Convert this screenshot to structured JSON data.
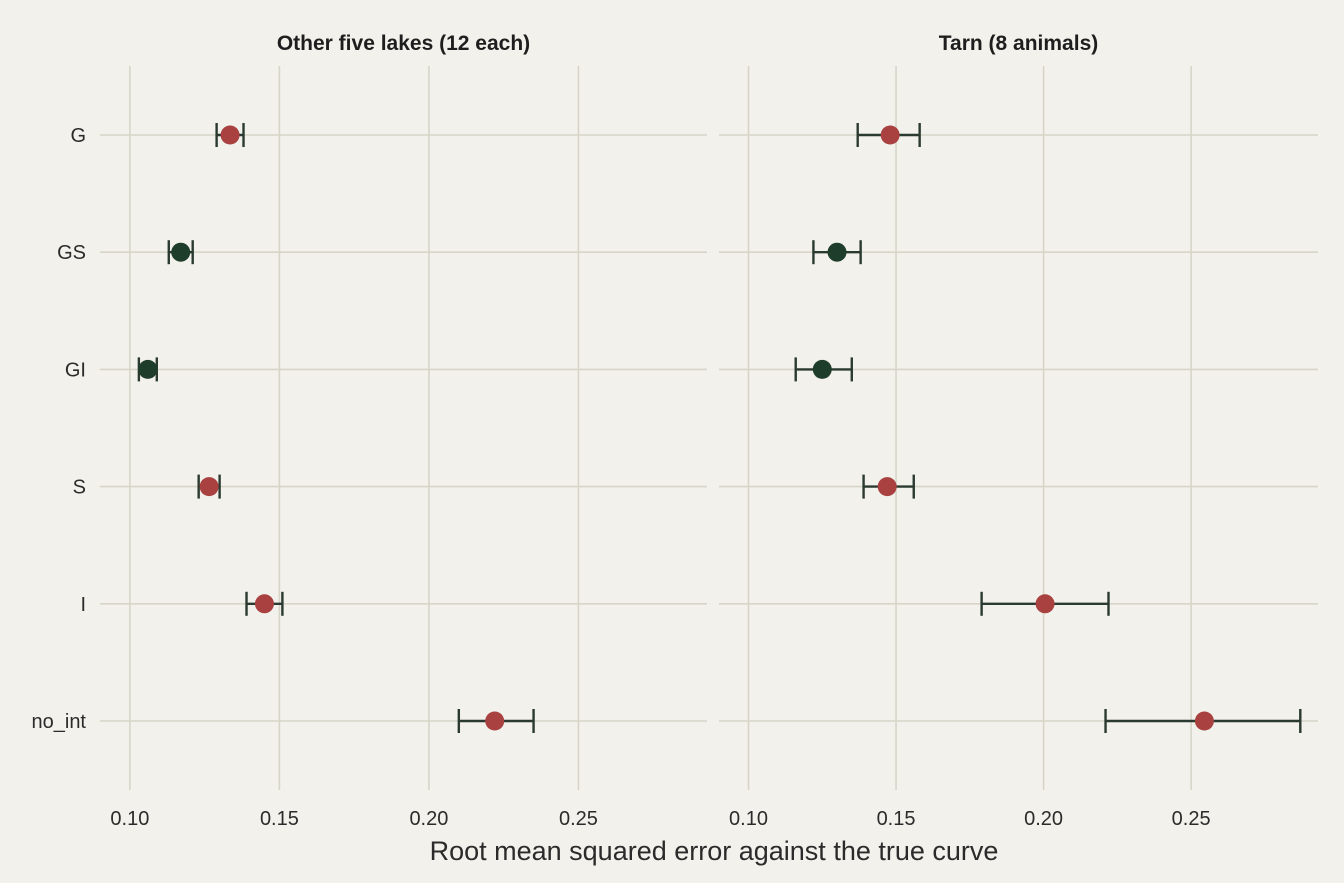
{
  "chart_data": {
    "type": "scatter",
    "subtype": "point-with-error-bars, faceted",
    "xlabel": "Root mean squared error against the true curve",
    "ylabel": "",
    "categories": [
      "G",
      "GS",
      "GI",
      "S",
      "I",
      "no_int"
    ],
    "xlim": [
      0.09,
      0.293
    ],
    "xticks": [
      0.1,
      0.15,
      0.2,
      0.25
    ],
    "xtick_labels": [
      "0.10",
      "0.15",
      "0.20",
      "0.25"
    ],
    "grid": true,
    "legend": "none",
    "colors": {
      "red": "#a84140",
      "green": "#1f3d2b",
      "errorbar": "#2a3a30",
      "background": "#f2f1eb",
      "grid": "#d6d5c8"
    },
    "panels": [
      {
        "title": "Other five lakes (12 each)",
        "points": [
          {
            "category": "G",
            "value": 0.1335,
            "low": 0.129,
            "high": 0.138,
            "color": "red"
          },
          {
            "category": "GS",
            "value": 0.117,
            "low": 0.113,
            "high": 0.121,
            "color": "green"
          },
          {
            "category": "GI",
            "value": 0.106,
            "low": 0.103,
            "high": 0.109,
            "color": "green"
          },
          {
            "category": "S",
            "value": 0.1265,
            "low": 0.123,
            "high": 0.13,
            "color": "red"
          },
          {
            "category": "I",
            "value": 0.145,
            "low": 0.139,
            "high": 0.151,
            "color": "red"
          },
          {
            "category": "no_int",
            "value": 0.222,
            "low": 0.21,
            "high": 0.235,
            "color": "red"
          }
        ]
      },
      {
        "title": "Tarn (8 animals)",
        "points": [
          {
            "category": "G",
            "value": 0.148,
            "low": 0.137,
            "high": 0.158,
            "color": "red"
          },
          {
            "category": "GS",
            "value": 0.13,
            "low": 0.122,
            "high": 0.138,
            "color": "green"
          },
          {
            "category": "GI",
            "value": 0.125,
            "low": 0.116,
            "high": 0.135,
            "color": "green"
          },
          {
            "category": "S",
            "value": 0.147,
            "low": 0.139,
            "high": 0.156,
            "color": "red"
          },
          {
            "category": "I",
            "value": 0.2005,
            "low": 0.179,
            "high": 0.222,
            "color": "red"
          },
          {
            "category": "no_int",
            "value": 0.2545,
            "low": 0.221,
            "high": 0.287,
            "color": "red"
          }
        ]
      }
    ]
  }
}
